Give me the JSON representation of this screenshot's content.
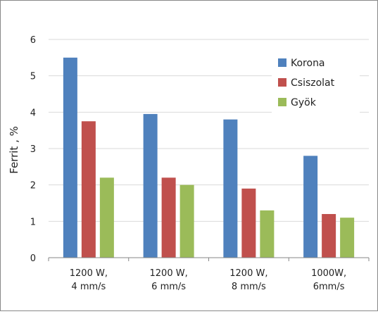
{
  "chart_data": {
    "type": "bar",
    "title": "",
    "xlabel": "",
    "ylabel": "Ferrit , %",
    "ylim": [
      0,
      6
    ],
    "yticks": [
      0,
      1,
      2,
      3,
      4,
      5,
      6
    ],
    "grid": true,
    "legend_position": "top-right",
    "categories": [
      [
        "1200 W,",
        "4 mm/s"
      ],
      [
        "1200 W,",
        "6 mm/s"
      ],
      [
        "1200 W,",
        "8 mm/s"
      ],
      [
        "1000W,",
        "6mm/s"
      ]
    ],
    "series": [
      {
        "name": "Korona",
        "color": "#4f81bd",
        "values": [
          5.5,
          3.95,
          3.8,
          2.8
        ]
      },
      {
        "name": "Csiszolat",
        "color": "#c0504d",
        "values": [
          3.75,
          2.2,
          1.9,
          1.2
        ]
      },
      {
        "name": "Gyök",
        "color": "#9bbb59",
        "values": [
          2.2,
          2.0,
          1.3,
          1.1
        ]
      }
    ]
  }
}
